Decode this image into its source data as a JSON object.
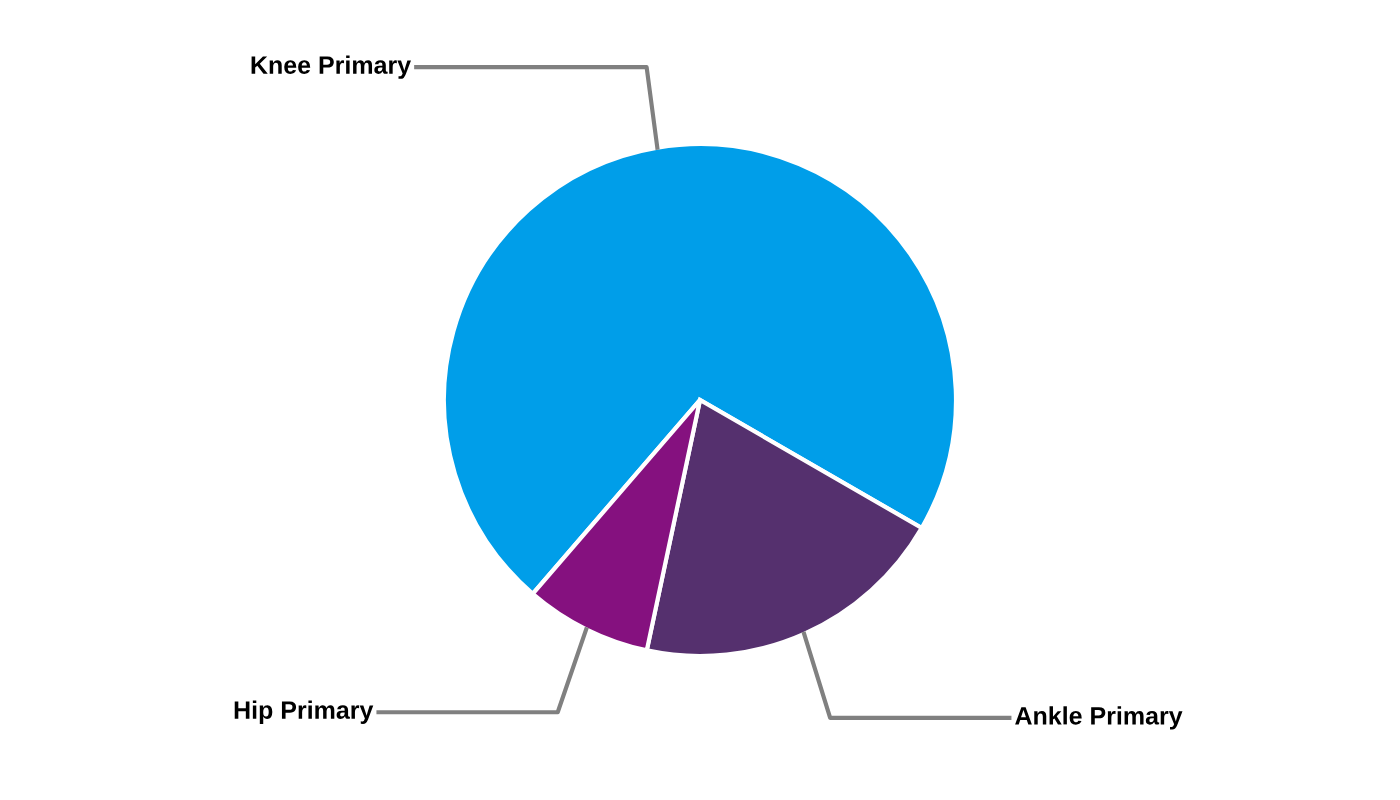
{
  "chart_data": {
    "type": "pie",
    "categories": [
      "Knee Primary",
      "Ankle Primary",
      "Hip Primary"
    ],
    "values": [
      72,
      20,
      8
    ],
    "colors": [
      "#009ee9",
      "#55306e",
      "#85117f"
    ],
    "legend": false
  }
}
